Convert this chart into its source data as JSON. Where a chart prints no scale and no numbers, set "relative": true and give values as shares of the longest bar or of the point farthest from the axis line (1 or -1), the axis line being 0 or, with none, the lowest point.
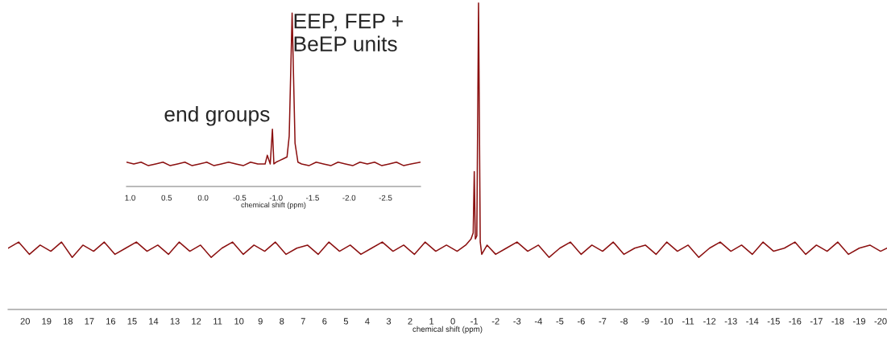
{
  "chart_data": [
    {
      "type": "line",
      "relative": true,
      "xlabel": "chemical shift (ppm)",
      "xlim": [
        20.8,
        -20.3
      ],
      "xticks": [
        20,
        19,
        18,
        17,
        16,
        15,
        14,
        13,
        12,
        11,
        10,
        9,
        8,
        7,
        6,
        5,
        4,
        3,
        2,
        1,
        0,
        -1,
        -2,
        -3,
        -4,
        -5,
        -6,
        -7,
        -8,
        -9,
        -10,
        -11,
        -12,
        -13,
        -14,
        -15,
        -16,
        -17,
        -18,
        -19,
        -20
      ],
      "series": [
        {
          "color": "#8b1010",
          "x": [
            20.8,
            20.3,
            19.8,
            19.3,
            18.8,
            18.3,
            17.8,
            17.3,
            16.8,
            16.3,
            15.8,
            15.3,
            14.8,
            14.3,
            13.8,
            13.3,
            12.8,
            12.3,
            11.8,
            11.3,
            10.8,
            10.3,
            9.8,
            9.3,
            8.8,
            8.3,
            7.8,
            7.3,
            6.8,
            6.3,
            5.8,
            5.3,
            4.8,
            4.3,
            3.8,
            3.3,
            2.8,
            2.3,
            1.8,
            1.3,
            0.8,
            0.3,
            -0.2,
            -0.6,
            -0.85,
            -0.95,
            -1.0,
            -1.05,
            -1.12,
            -1.2,
            -1.28,
            -1.35,
            -1.6,
            -2.0,
            -2.5,
            -3.0,
            -3.5,
            -4.0,
            -4.5,
            -5.0,
            -5.5,
            -6.0,
            -6.5,
            -7.0,
            -7.5,
            -8.0,
            -8.5,
            -9.0,
            -9.5,
            -10.0,
            -10.5,
            -11.0,
            -11.5,
            -12.0,
            -12.5,
            -13.0,
            -13.5,
            -14.0,
            -14.5,
            -15.0,
            -15.5,
            -16.0,
            -16.5,
            -17.0,
            -17.5,
            -18.0,
            -18.5,
            -19.0,
            -19.5,
            -20.0,
            -20.3
          ],
          "values": [
            0.2,
            0.22,
            0.18,
            0.21,
            0.19,
            0.22,
            0.17,
            0.21,
            0.19,
            0.22,
            0.18,
            0.2,
            0.22,
            0.19,
            0.21,
            0.18,
            0.22,
            0.19,
            0.21,
            0.17,
            0.2,
            0.22,
            0.18,
            0.21,
            0.19,
            0.22,
            0.18,
            0.2,
            0.21,
            0.18,
            0.22,
            0.19,
            0.21,
            0.18,
            0.2,
            0.22,
            0.19,
            0.21,
            0.18,
            0.22,
            0.19,
            0.21,
            0.19,
            0.21,
            0.23,
            0.25,
            0.45,
            0.23,
            0.24,
            1.0,
            0.22,
            0.18,
            0.21,
            0.18,
            0.2,
            0.22,
            0.19,
            0.21,
            0.17,
            0.2,
            0.22,
            0.18,
            0.21,
            0.19,
            0.22,
            0.18,
            0.2,
            0.21,
            0.18,
            0.22,
            0.19,
            0.21,
            0.17,
            0.2,
            0.22,
            0.19,
            0.21,
            0.18,
            0.22,
            0.19,
            0.2,
            0.22,
            0.18,
            0.21,
            0.19,
            0.22,
            0.18,
            0.2,
            0.21,
            0.19,
            0.2
          ]
        }
      ]
    },
    {
      "type": "line",
      "relative": true,
      "xlabel": "chemical shift (ppm)",
      "xlim": [
        1.05,
        -2.98
      ],
      "xticks": [
        {
          "value": 1.0,
          "label": "1.0"
        },
        0.5,
        {
          "value": 0,
          "label": "0.0"
        },
        -0.5,
        {
          "value": -1,
          "label": "-1.0"
        },
        -1.5,
        {
          "value": -2,
          "label": "-2.0"
        },
        -2.5
      ],
      "annotations": [
        {
          "text": "end groups",
          "x": -0.95,
          "y": 0.33
        },
        {
          "text": "EEP, FEP +\nBeEP units",
          "x": -1.2,
          "y": 1.0
        }
      ],
      "series": [
        {
          "color": "#8b1010",
          "x": [
            1.05,
            0.95,
            0.85,
            0.75,
            0.65,
            0.55,
            0.45,
            0.35,
            0.25,
            0.15,
            0.05,
            -0.05,
            -0.15,
            -0.25,
            -0.35,
            -0.45,
            -0.55,
            -0.65,
            -0.75,
            -0.85,
            -0.88,
            -0.92,
            -0.95,
            -0.97,
            -1.0,
            -1.05,
            -1.1,
            -1.15,
            -1.18,
            -1.22,
            -1.26,
            -1.3,
            -1.35,
            -1.45,
            -1.55,
            -1.65,
            -1.75,
            -1.85,
            -1.95,
            -2.05,
            -2.15,
            -2.25,
            -2.35,
            -2.45,
            -2.55,
            -2.65,
            -2.75,
            -2.85,
            -2.98
          ],
          "values": [
            0.14,
            0.13,
            0.14,
            0.12,
            0.13,
            0.14,
            0.12,
            0.13,
            0.14,
            0.12,
            0.13,
            0.14,
            0.12,
            0.13,
            0.14,
            0.13,
            0.12,
            0.14,
            0.13,
            0.13,
            0.18,
            0.13,
            0.33,
            0.13,
            0.14,
            0.15,
            0.16,
            0.17,
            0.29,
            1.0,
            0.25,
            0.14,
            0.13,
            0.12,
            0.14,
            0.13,
            0.12,
            0.14,
            0.13,
            0.12,
            0.14,
            0.13,
            0.14,
            0.12,
            0.13,
            0.14,
            0.12,
            0.13,
            0.14
          ]
        }
      ]
    }
  ]
}
